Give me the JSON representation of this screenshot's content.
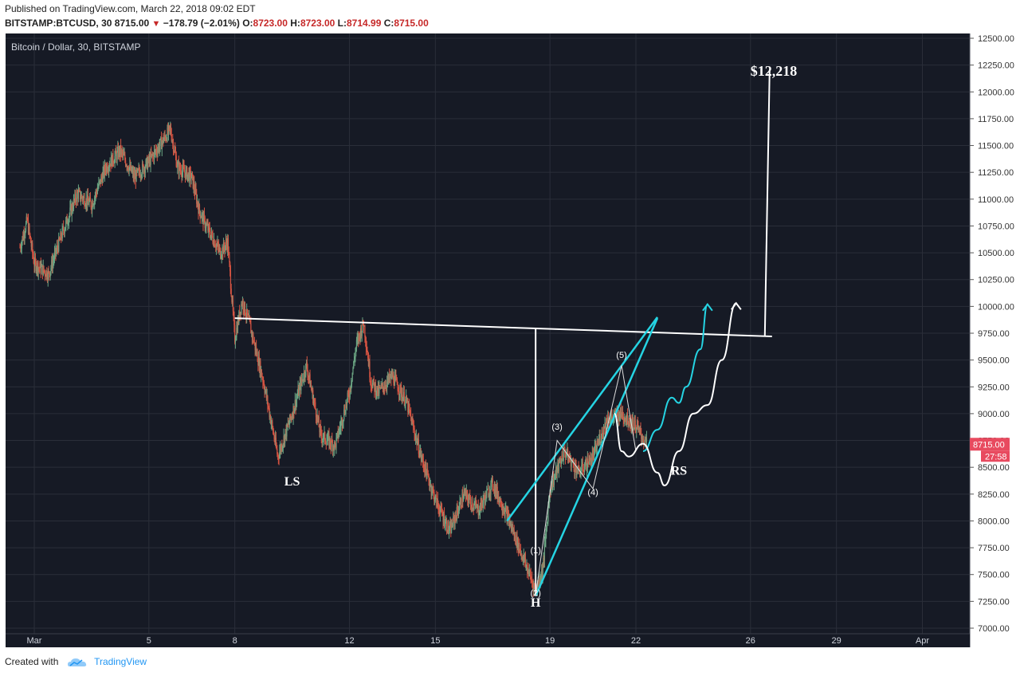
{
  "header": {
    "published": "Published on TradingView.com, March 22, 2018 09:02 EDT",
    "symbol": "BITSTAMP:BTCUSD, 30",
    "last": "8715.00",
    "change": "−178.79 (−2.01%)",
    "o_label": "O:",
    "o": "8723.00",
    "h_label": "H:",
    "h": "8723.00",
    "l_label": "L:",
    "l": "8714.99",
    "c_label": "C:",
    "c": "8715.00"
  },
  "footer": {
    "created_with": "Created with",
    "brand": "TradingView"
  },
  "colors": {
    "background": "#161a25",
    "grid": "#2a2e39",
    "up": "#6ba583",
    "down": "#d75442",
    "teal": "#25d4e3",
    "white": "#ffffff",
    "price_tag": "#e84a5f"
  },
  "chart_data": {
    "type": "candlestick",
    "title": "Bitcoin / Dollar, 30, BITSTAMP",
    "y_ticks": [
      12500,
      12250,
      12000,
      11750,
      11500,
      11250,
      11000,
      10750,
      10500,
      10250,
      10000,
      9750,
      9500,
      9250,
      9000,
      8750,
      8500,
      8250,
      8000,
      7750,
      7500,
      7250,
      7000
    ],
    "ylim": [
      7000,
      12500
    ],
    "x_ticks": [
      "Mar",
      "5",
      "8",
      "12",
      "15",
      "19",
      "22",
      "26",
      "29",
      "Apr"
    ],
    "last_price_label": "8715.00",
    "countdown_label": "27:58",
    "price_path": [
      [
        "Feb 28 12:00",
        10550
      ],
      [
        "Feb 28 18:00",
        10800
      ],
      [
        "Mar 1",
        10400
      ],
      [
        "Mar 1 12:00",
        10300
      ],
      [
        "Mar 2",
        10700
      ],
      [
        "Mar 2 12:00",
        11050
      ],
      [
        "Mar 3",
        10950
      ],
      [
        "Mar 3 12:00",
        11300
      ],
      [
        "Mar 4",
        11450
      ],
      [
        "Mar 4 12:00",
        11200
      ],
      [
        "Mar 5",
        11350
      ],
      [
        "Mar 5 12:00",
        11550
      ],
      [
        "Mar 5 18:00",
        11650
      ],
      [
        "Mar 6",
        11300
      ],
      [
        "Mar 6 12:00",
        11200
      ],
      [
        "Mar 6 18:00",
        10900
      ],
      [
        "Mar 7",
        10750
      ],
      [
        "Mar 7 12:00",
        10500
      ],
      [
        "Mar 7 18:00",
        10600
      ],
      [
        "Mar 8",
        9700
      ],
      [
        "Mar 8 06:00",
        10050
      ],
      [
        "Mar 8 12:00",
        9850
      ],
      [
        "Mar 9",
        9300
      ],
      [
        "Mar 9 12:00",
        8600
      ],
      [
        "Mar 10",
        9000
      ],
      [
        "Mar 10 12:00",
        9450
      ],
      [
        "Mar 11",
        8800
      ],
      [
        "Mar 11 12:00",
        8700
      ],
      [
        "Mar 12",
        9200
      ],
      [
        "Mar 12 06:00",
        9650
      ],
      [
        "Mar 12 12:00",
        9850
      ],
      [
        "Mar 12 18:00",
        9300
      ],
      [
        "Mar 13",
        9200
      ],
      [
        "Mar 13 12:00",
        9350
      ],
      [
        "Mar 14",
        9100
      ],
      [
        "Mar 14 12:00",
        8600
      ],
      [
        "Mar 15",
        8200
      ],
      [
        "Mar 15 12:00",
        7900
      ],
      [
        "Mar 16",
        8250
      ],
      [
        "Mar 16 12:00",
        8100
      ],
      [
        "Mar 17",
        8350
      ],
      [
        "Mar 17 12:00",
        8050
      ],
      [
        "Mar 18",
        7700
      ],
      [
        "Mar 18 12:00",
        7350
      ],
      [
        "Mar 18 18:00",
        7550
      ],
      [
        "Mar 19",
        8300
      ],
      [
        "Mar 19 12:00",
        8650
      ],
      [
        "Mar 20",
        8450
      ],
      [
        "Mar 20 12:00",
        8600
      ],
      [
        "Mar 21",
        8950
      ],
      [
        "Mar 21 12:00",
        9000
      ],
      [
        "Mar 22",
        8880
      ],
      [
        "Mar 22 09:00",
        8715
      ]
    ],
    "annotations": {
      "labels": [
        {
          "text": "$12,218",
          "x": "Mar 26",
          "y": 12150
        },
        {
          "text": "LS",
          "x": "Mar 10",
          "y": 8330
        },
        {
          "text": "H",
          "x": "Mar 18 12:00",
          "y": 7200
        },
        {
          "text": "RS",
          "x": "Mar 23 12:00",
          "y": 8430
        }
      ],
      "wave_labels": [
        {
          "text": "(1)",
          "x": "Mar 18 12:00",
          "y": 7700
        },
        {
          "text": "(2)",
          "x": "Mar 18 12:00",
          "y": 7300
        },
        {
          "text": "(3)",
          "x": "Mar 19 06:00",
          "y": 8850
        },
        {
          "text": "(4)",
          "x": "Mar 20 12:00",
          "y": 8240
        },
        {
          "text": "(5)",
          "x": "Mar 21 12:00",
          "y": 9520
        }
      ],
      "neckline": {
        "from": [
          "Mar 8",
          9890
        ],
        "to": [
          "Mar 26 18:00",
          9720
        ]
      },
      "height_marker": {
        "x": "Mar 18 12:00",
        "from": 9790,
        "to": 7320
      },
      "target_line": {
        "x": "Mar 26 12:00",
        "from": 9720,
        "to": 12200
      },
      "teal_channel": [
        {
          "from": [
            "Mar 17 12:00",
            8000
          ],
          "to": [
            "Mar 22 18:00",
            9900
          ]
        },
        {
          "from": [
            "Mar 18 12:00",
            7300
          ],
          "to": [
            "Mar 22 18:00",
            9890
          ]
        }
      ]
    }
  }
}
